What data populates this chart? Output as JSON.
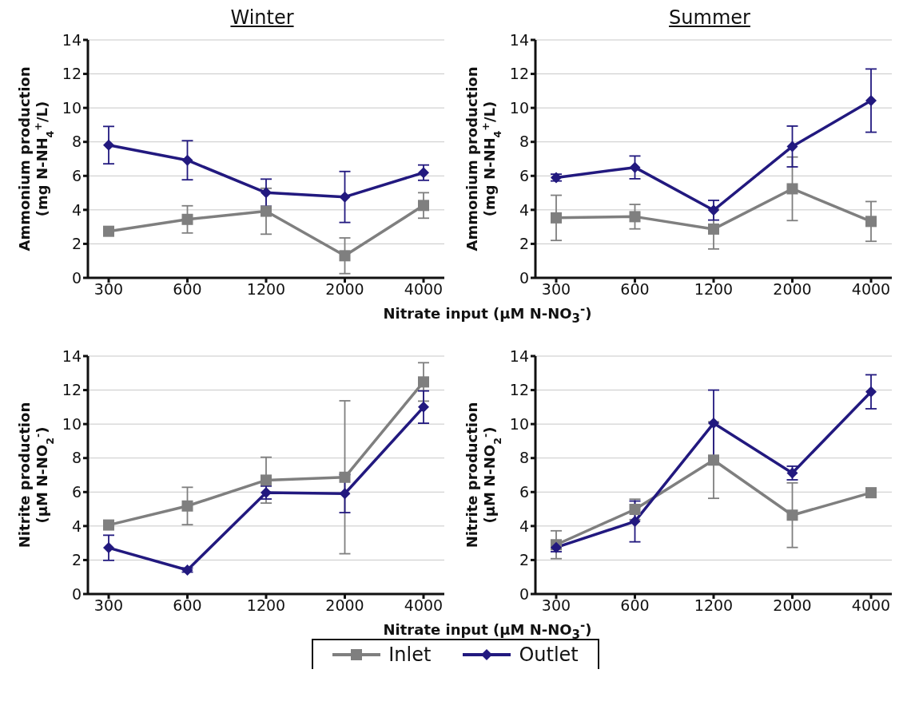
{
  "chart_data": [
    {
      "type": "line",
      "title": "Winter",
      "ylabel": "Ammonium production\n(mg N-NH$_{4}$$^{+}$/L)",
      "xlabel": "Nitrate input (µM N-NO$_{3}$$^{-}$)",
      "categories": [
        "300",
        "600",
        "1200",
        "2000",
        "4000"
      ],
      "ylim": [
        0,
        14
      ],
      "yticks": [
        0,
        2,
        4,
        6,
        8,
        10,
        12,
        14
      ],
      "grid": "y",
      "series": [
        {
          "color": "#7f7f7f",
          "marker": "square",
          "values": [
            2.74,
            3.44,
            3.92,
            1.3,
            4.26
          ],
          "errors": [
            null,
            0.8,
            1.35,
            1.05,
            0.75
          ]
        },
        {
          "color": "#22197f",
          "marker": "diamond",
          "values": [
            7.81,
            6.92,
            5.01,
            4.76,
            6.19
          ],
          "errors": [
            1.1,
            1.15,
            0.8,
            1.5,
            0.45
          ]
        }
      ]
    },
    {
      "type": "line",
      "title": "Summer",
      "ylabel": "Ammonium production\n(mg N-NH$_{4}$$^{+}$/L)",
      "categories": [
        "300",
        "600",
        "1200",
        "2000",
        "4000"
      ],
      "ylim": [
        0,
        14
      ],
      "yticks": [
        0,
        2,
        4,
        6,
        8,
        10,
        12,
        14
      ],
      "grid": "y",
      "series": [
        {
          "color": "#7f7f7f",
          "marker": "square",
          "values": [
            3.53,
            3.6,
            2.87,
            5.24,
            3.32
          ],
          "errors": [
            1.33,
            0.72,
            1.17,
            1.87,
            1.17
          ]
        },
        {
          "color": "#22197f",
          "marker": "diamond",
          "values": [
            5.9,
            6.5,
            3.98,
            7.73,
            10.43
          ],
          "errors": [
            0.2,
            0.67,
            0.58,
            1.2,
            1.86
          ]
        }
      ]
    },
    {
      "type": "line",
      "ylabel": "Nitrite production\n(µM N-NO$_{2}$$^{-}$)",
      "xlabel": "Nitrate input (µM N-NO$_{3}$$^{-}$)",
      "categories": [
        "300",
        "600",
        "1200",
        "2000",
        "4000"
      ],
      "ylim": [
        0,
        14
      ],
      "yticks": [
        0,
        2,
        4,
        6,
        8,
        10,
        12,
        14
      ],
      "grid": "y",
      "series": [
        {
          "color": "#7f7f7f",
          "marker": "square",
          "values": [
            4.06,
            5.18,
            6.7,
            6.87,
            12.48
          ],
          "errors": [
            null,
            1.1,
            1.35,
            4.5,
            1.13
          ]
        },
        {
          "color": "#22197f",
          "marker": "diamond",
          "values": [
            2.72,
            1.41,
            5.97,
            5.91,
            11.0
          ],
          "errors": [
            0.74,
            0.12,
            0.38,
            1.12,
            0.95
          ]
        }
      ]
    },
    {
      "type": "line",
      "ylabel": "Nitrite production\n(µM N-NO$_{2}$$^{-}$)",
      "categories": [
        "300",
        "600",
        "1200",
        "2000",
        "4000"
      ],
      "ylim": [
        0,
        14
      ],
      "yticks": [
        0,
        2,
        4,
        6,
        8,
        10,
        12,
        14
      ],
      "grid": "y",
      "legend": "bottom",
      "series": [
        {
          "name": "Inlet",
          "color": "#7f7f7f",
          "marker": "square",
          "values": [
            2.9,
            4.98,
            7.88,
            4.64,
            5.96
          ],
          "errors": [
            0.82,
            0.6,
            2.25,
            1.9,
            null
          ]
        },
        {
          "name": "Outlet",
          "color": "#22197f",
          "marker": "diamond",
          "values": [
            2.74,
            4.27,
            10.05,
            7.12,
            11.9
          ],
          "errors": [
            0.25,
            1.2,
            1.95,
            0.4,
            1.0
          ]
        }
      ]
    }
  ]
}
